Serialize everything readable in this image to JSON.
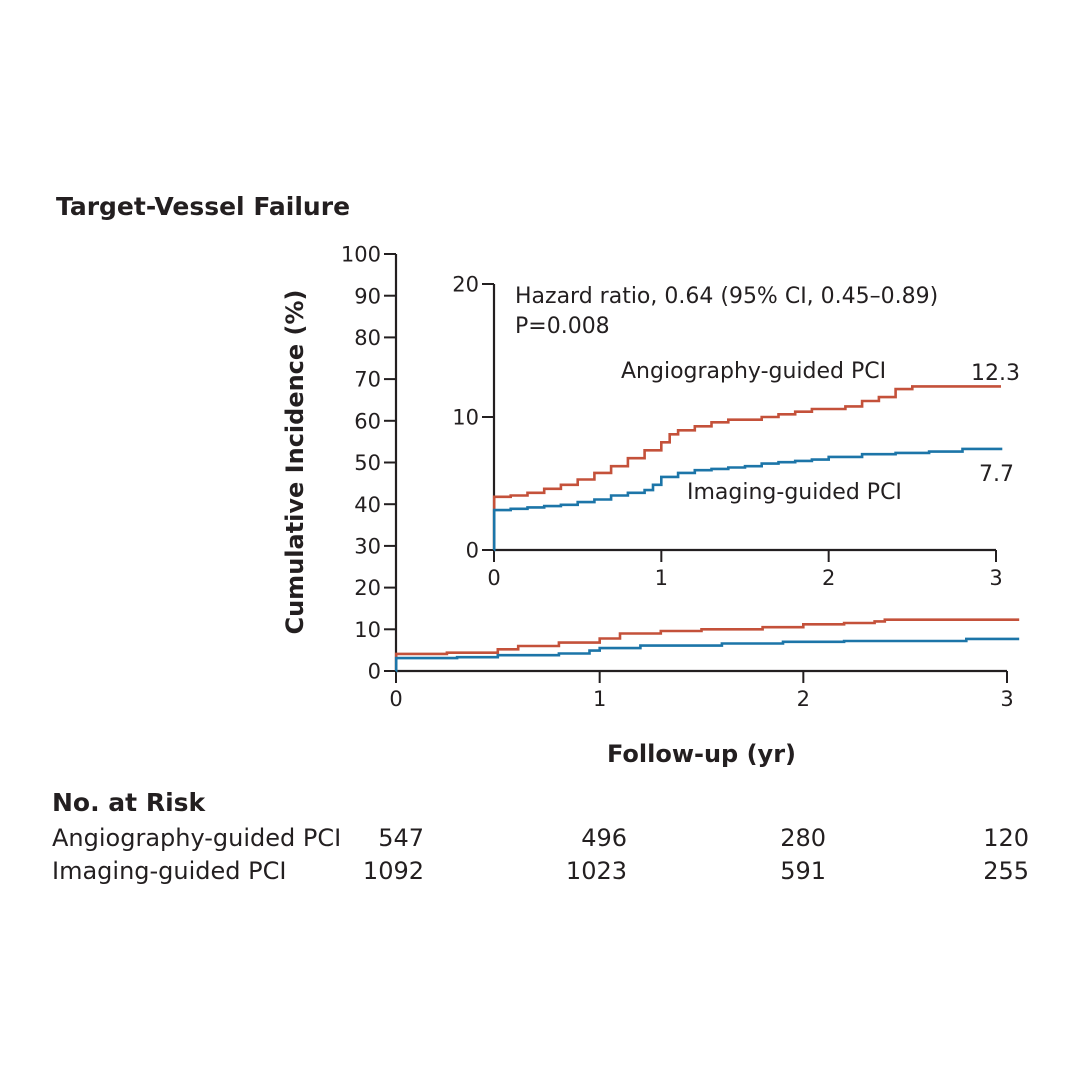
{
  "figure": {
    "title": "Target-Vessel Failure",
    "colors": {
      "angiography": "#c4513a",
      "imaging": "#1c75a8",
      "axis": "#231f20"
    }
  },
  "chart_data": [
    {
      "name": "main",
      "type": "line",
      "step": true,
      "xlabel": "Follow-up (yr)",
      "ylabel": "Cumulative Incidence (%)",
      "xlim": [
        0,
        3
      ],
      "ylim": [
        0,
        100
      ],
      "xticks": [
        "0",
        "1",
        "2",
        "3"
      ],
      "yticks": [
        "0",
        "10",
        "20",
        "30",
        "40",
        "50",
        "60",
        "70",
        "80",
        "90",
        "100"
      ],
      "series": [
        {
          "name": "Angiography-guided PCI",
          "x": [
            0,
            0.001,
            0.25,
            0.5,
            0.6,
            0.8,
            1.0,
            1.1,
            1.3,
            1.5,
            1.8,
            2.0,
            2.2,
            2.35,
            2.4,
            3.06
          ],
          "y": [
            0,
            4.1,
            4.4,
            5.2,
            6.0,
            6.8,
            7.8,
            9.0,
            9.6,
            10.0,
            10.5,
            11.2,
            11.5,
            11.9,
            12.3,
            12.3
          ]
        },
        {
          "name": "Imaging-guided PCI",
          "x": [
            0,
            0.001,
            0.3,
            0.5,
            0.8,
            0.95,
            1.0,
            1.2,
            1.6,
            1.9,
            2.2,
            2.8,
            3.06
          ],
          "y": [
            0,
            3.1,
            3.3,
            3.8,
            4.2,
            4.9,
            5.5,
            6.1,
            6.6,
            7.0,
            7.2,
            7.7,
            7.7
          ]
        }
      ]
    },
    {
      "name": "inset",
      "type": "line",
      "step": true,
      "xlim": [
        0,
        3
      ],
      "ylim": [
        0,
        20
      ],
      "xticks": [
        "0",
        "1",
        "2",
        "3"
      ],
      "yticks": [
        "0",
        "10",
        "20"
      ],
      "annotations": {
        "hazard_ratio": "Hazard ratio, 0.64 (95% CI, 0.45–0.89)",
        "p_value": "P=0.008",
        "angiography_label": "Angiography-guided PCI",
        "imaging_label": "Imaging-guided PCI",
        "angiography_end_value": "12.3",
        "imaging_end_value": "7.7"
      },
      "series": [
        {
          "name": "Angiography-guided PCI",
          "x": [
            0,
            0.001,
            0.1,
            0.2,
            0.3,
            0.4,
            0.5,
            0.6,
            0.7,
            0.8,
            0.9,
            1.0,
            1.05,
            1.1,
            1.2,
            1.3,
            1.4,
            1.5,
            1.6,
            1.7,
            1.8,
            1.9,
            2.0,
            2.1,
            2.2,
            2.3,
            2.4,
            2.5,
            3.03
          ],
          "y": [
            0,
            4.0,
            4.1,
            4.3,
            4.6,
            4.9,
            5.3,
            5.8,
            6.3,
            6.9,
            7.5,
            8.1,
            8.7,
            9.0,
            9.3,
            9.6,
            9.8,
            9.8,
            10.0,
            10.2,
            10.4,
            10.6,
            10.6,
            10.8,
            11.2,
            11.5,
            12.1,
            12.3,
            12.3
          ]
        },
        {
          "name": "Imaging-guided PCI",
          "x": [
            0,
            0.001,
            0.1,
            0.2,
            0.3,
            0.4,
            0.5,
            0.6,
            0.7,
            0.8,
            0.9,
            0.95,
            1.0,
            1.1,
            1.2,
            1.3,
            1.4,
            1.5,
            1.6,
            1.7,
            1.8,
            1.9,
            2.0,
            2.2,
            2.4,
            2.6,
            2.8,
            3.03
          ],
          "y": [
            0,
            3.0,
            3.1,
            3.2,
            3.3,
            3.4,
            3.6,
            3.8,
            4.1,
            4.3,
            4.5,
            4.9,
            5.5,
            5.8,
            6.0,
            6.1,
            6.2,
            6.3,
            6.5,
            6.6,
            6.7,
            6.8,
            7.0,
            7.2,
            7.3,
            7.4,
            7.6,
            7.7
          ]
        }
      ]
    }
  ],
  "risk_table": {
    "title": "No. at Risk",
    "rows": [
      {
        "label": "Angiography-guided PCI",
        "values": [
          "547",
          "496",
          "280",
          "120"
        ]
      },
      {
        "label": "Imaging-guided PCI",
        "values": [
          "1092",
          "1023",
          "591",
          "255"
        ]
      }
    ]
  }
}
